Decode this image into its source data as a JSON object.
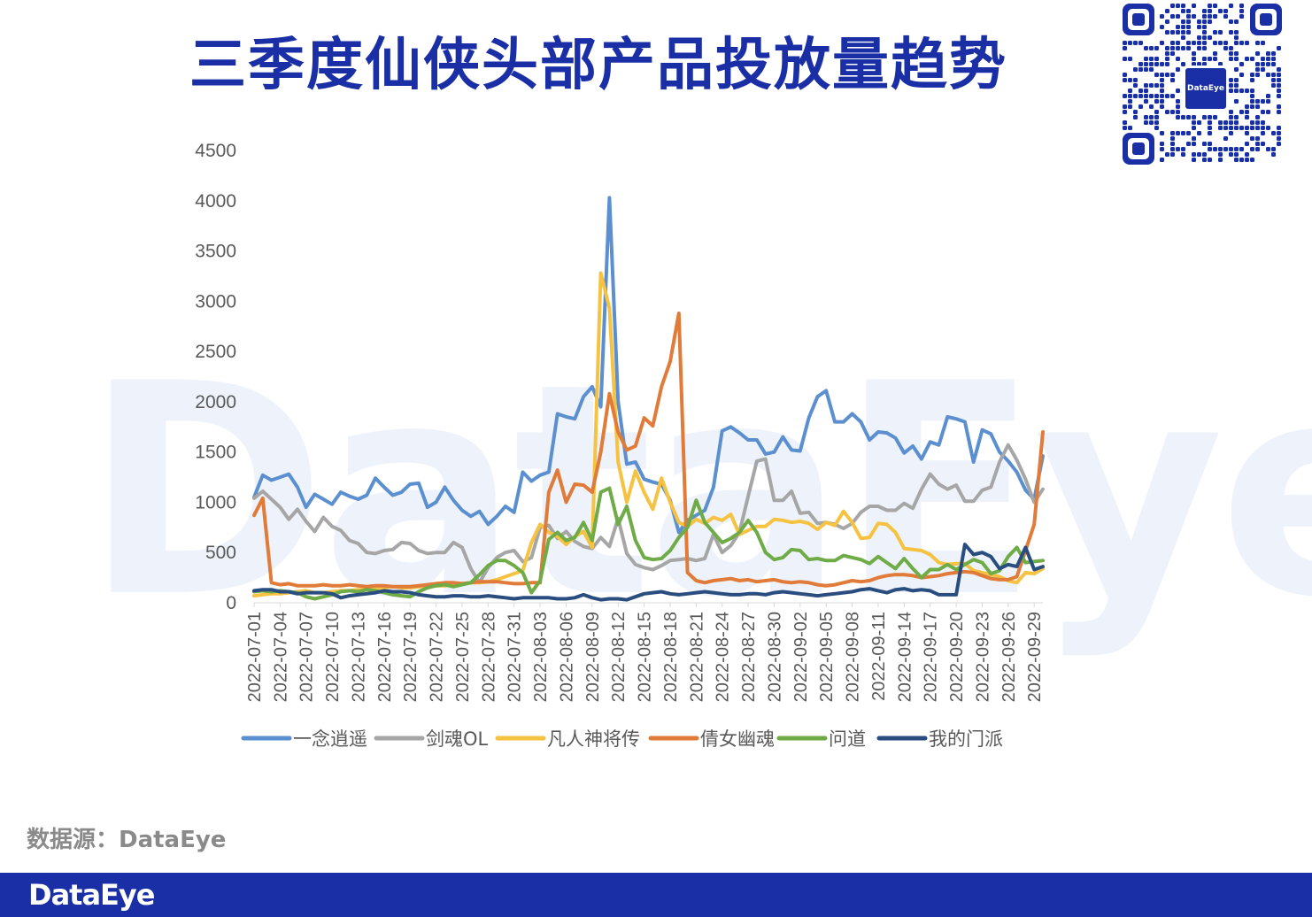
{
  "title": "三季度仙侠头部产品投放量趋势",
  "watermark": "DataEye",
  "source_label": "数据源：DataEye",
  "footer_logo": "DataEye",
  "qr_logo_text": "DataEye",
  "colors": {
    "title": "#1a2ea6",
    "footer": "#1a2ea6",
    "axis_text": "#595959",
    "gridline": "#d9d9d9"
  },
  "chart_data": {
    "type": "line",
    "title": "",
    "xlabel": "",
    "ylabel": "",
    "ylim": [
      0,
      4500
    ],
    "yticks": [
      0,
      500,
      1000,
      1500,
      2000,
      2500,
      3000,
      3500,
      4000,
      4500
    ],
    "grid": false,
    "legend_position": "bottom",
    "x": [
      "2022-07-01",
      "2022-07-02",
      "2022-07-03",
      "2022-07-04",
      "2022-07-05",
      "2022-07-06",
      "2022-07-07",
      "2022-07-08",
      "2022-07-09",
      "2022-07-10",
      "2022-07-11",
      "2022-07-12",
      "2022-07-13",
      "2022-07-14",
      "2022-07-15",
      "2022-07-16",
      "2022-07-17",
      "2022-07-18",
      "2022-07-19",
      "2022-07-20",
      "2022-07-21",
      "2022-07-22",
      "2022-07-23",
      "2022-07-24",
      "2022-07-25",
      "2022-07-26",
      "2022-07-27",
      "2022-07-28",
      "2022-07-29",
      "2022-07-30",
      "2022-07-31",
      "2022-08-01",
      "2022-08-02",
      "2022-08-03",
      "2022-08-04",
      "2022-08-05",
      "2022-08-06",
      "2022-08-07",
      "2022-08-08",
      "2022-08-09",
      "2022-08-10",
      "2022-08-11",
      "2022-08-12",
      "2022-08-13",
      "2022-08-14",
      "2022-08-15",
      "2022-08-16",
      "2022-08-17",
      "2022-08-18",
      "2022-08-19",
      "2022-08-20",
      "2022-08-21",
      "2022-08-22",
      "2022-08-23",
      "2022-08-24",
      "2022-08-25",
      "2022-08-26",
      "2022-08-27",
      "2022-08-28",
      "2022-08-29",
      "2022-08-30",
      "2022-08-31",
      "2022-09-01",
      "2022-09-02",
      "2022-09-03",
      "2022-09-04",
      "2022-09-05",
      "2022-09-06",
      "2022-09-07",
      "2022-09-08",
      "2022-09-09",
      "2022-09-10",
      "2022-09-11",
      "2022-09-12",
      "2022-09-13",
      "2022-09-14",
      "2022-09-15",
      "2022-09-16",
      "2022-09-17",
      "2022-09-18",
      "2022-09-19",
      "2022-09-20",
      "2022-09-21",
      "2022-09-22",
      "2022-09-23",
      "2022-09-24",
      "2022-09-25",
      "2022-09-26",
      "2022-09-27",
      "2022-09-28",
      "2022-09-29",
      "2022-09-30"
    ],
    "xtick_labels": [
      "2022-07-01",
      "2022-07-04",
      "2022-07-07",
      "2022-07-10",
      "2022-07-13",
      "2022-07-16",
      "2022-07-19",
      "2022-07-22",
      "2022-07-25",
      "2022-07-28",
      "2022-07-31",
      "2022-08-03",
      "2022-08-06",
      "2022-08-09",
      "2022-08-12",
      "2022-08-15",
      "2022-08-18",
      "2022-08-21",
      "2022-08-24",
      "2022-08-27",
      "2022-08-30",
      "2022-09-02",
      "2022-09-05",
      "2022-09-08",
      "2022-09-11",
      "2022-09-14",
      "2022-09-17",
      "2022-09-20",
      "2022-09-23",
      "2022-09-26",
      "2022-09-29"
    ],
    "series": [
      {
        "name": "一念逍遥",
        "color": "#5b8fd0",
        "values": [
          1050,
          1270,
          1220,
          1250,
          1280,
          1150,
          950,
          1080,
          1030,
          980,
          1100,
          1060,
          1030,
          1070,
          1240,
          1150,
          1070,
          1100,
          1180,
          1190,
          950,
          1000,
          1150,
          1020,
          920,
          860,
          910,
          780,
          860,
          960,
          900,
          1300,
          1210,
          1270,
          1300,
          1880,
          1850,
          1830,
          2050,
          2150,
          1950,
          4030,
          2000,
          1380,
          1400,
          1230,
          1200,
          1180,
          1020,
          700,
          820,
          870,
          920,
          1150,
          1710,
          1750,
          1690,
          1620,
          1620,
          1480,
          1500,
          1650,
          1520,
          1510,
          1840,
          2050,
          2110,
          1800,
          1800,
          1880,
          1800,
          1620,
          1700,
          1690,
          1640,
          1490,
          1560,
          1430,
          1600,
          1570,
          1850,
          1830,
          1800,
          1400,
          1720,
          1680,
          1500,
          1410,
          1300,
          1120,
          1030,
          1460
        ]
      },
      {
        "name": "剑魂OL",
        "color": "#a6a6a6",
        "values": [
          1040,
          1110,
          1030,
          950,
          830,
          930,
          810,
          710,
          850,
          760,
          720,
          620,
          590,
          500,
          490,
          520,
          530,
          600,
          590,
          520,
          490,
          500,
          500,
          600,
          550,
          340,
          200,
          350,
          450,
          500,
          520,
          410,
          450,
          750,
          770,
          640,
          710,
          610,
          560,
          540,
          650,
          560,
          840,
          490,
          380,
          350,
          330,
          370,
          420,
          430,
          440,
          420,
          440,
          680,
          500,
          570,
          700,
          1060,
          1410,
          1430,
          1020,
          1020,
          1110,
          890,
          900,
          790,
          800,
          780,
          740,
          790,
          900,
          960,
          960,
          920,
          920,
          990,
          940,
          1130,
          1280,
          1180,
          1130,
          1170,
          1010,
          1010,
          1120,
          1150,
          1400,
          1570,
          1420,
          1230,
          1000,
          1130
        ]
      },
      {
        "name": "凡人神将传",
        "color": "#f5c242",
        "values": [
          70,
          80,
          90,
          90,
          100,
          110,
          120,
          100,
          100,
          110,
          120,
          120,
          130,
          130,
          140,
          150,
          160,
          150,
          150,
          160,
          160,
          170,
          170,
          180,
          190,
          200,
          200,
          210,
          230,
          260,
          290,
          320,
          600,
          780,
          700,
          660,
          580,
          660,
          710,
          550,
          3280,
          2930,
          1400,
          1000,
          1310,
          1100,
          930,
          1240,
          1000,
          800,
          760,
          830,
          790,
          850,
          820,
          880,
          680,
          720,
          760,
          760,
          830,
          820,
          800,
          810,
          790,
          730,
          800,
          770,
          910,
          800,
          640,
          650,
          790,
          780,
          700,
          540,
          530,
          520,
          480,
          400,
          380,
          390,
          390,
          320,
          300,
          280,
          260,
          220,
          200,
          300,
          290,
          340
        ]
      },
      {
        "name": "倩女幽魂",
        "color": "#e07b39",
        "values": [
          870,
          1040,
          200,
          180,
          190,
          170,
          170,
          170,
          180,
          170,
          170,
          180,
          170,
          160,
          170,
          170,
          160,
          160,
          160,
          170,
          180,
          190,
          200,
          200,
          190,
          200,
          210,
          210,
          210,
          200,
          190,
          190,
          200,
          200,
          1100,
          1320,
          1000,
          1180,
          1170,
          1100,
          1500,
          2080,
          1700,
          1520,
          1560,
          1840,
          1760,
          2150,
          2400,
          2880,
          300,
          220,
          200,
          220,
          230,
          240,
          220,
          230,
          210,
          220,
          230,
          210,
          200,
          210,
          200,
          180,
          170,
          180,
          200,
          220,
          210,
          220,
          250,
          270,
          280,
          280,
          270,
          250,
          260,
          270,
          290,
          300,
          310,
          300,
          270,
          240,
          230,
          230,
          260,
          520,
          780,
          1700
        ]
      },
      {
        "name": "问道",
        "color": "#6fab46",
        "values": [
          110,
          120,
          110,
          120,
          110,
          100,
          60,
          40,
          60,
          80,
          110,
          120,
          110,
          130,
          120,
          100,
          80,
          70,
          60,
          110,
          150,
          170,
          180,
          160,
          180,
          200,
          280,
          370,
          420,
          420,
          370,
          300,
          100,
          220,
          630,
          700,
          620,
          650,
          800,
          620,
          1100,
          1140,
          780,
          960,
          620,
          450,
          430,
          440,
          520,
          650,
          750,
          1020,
          800,
          700,
          600,
          640,
          700,
          820,
          700,
          500,
          430,
          450,
          530,
          520,
          430,
          440,
          420,
          420,
          470,
          450,
          430,
          390,
          460,
          400,
          340,
          440,
          340,
          250,
          330,
          330,
          380,
          330,
          380,
          430,
          400,
          290,
          320,
          460,
          550,
          400,
          410,
          420
        ]
      },
      {
        "name": "我的门派",
        "color": "#2a4d7f",
        "values": [
          120,
          130,
          130,
          110,
          110,
          90,
          100,
          100,
          100,
          90,
          50,
          70,
          80,
          90,
          100,
          120,
          110,
          110,
          100,
          80,
          70,
          60,
          60,
          70,
          70,
          60,
          60,
          70,
          60,
          50,
          40,
          50,
          50,
          50,
          50,
          40,
          40,
          50,
          80,
          50,
          30,
          40,
          40,
          30,
          60,
          90,
          100,
          110,
          90,
          80,
          90,
          100,
          110,
          100,
          90,
          80,
          80,
          90,
          90,
          80,
          100,
          110,
          100,
          90,
          80,
          70,
          80,
          90,
          100,
          110,
          130,
          140,
          120,
          100,
          130,
          140,
          120,
          130,
          120,
          80,
          80,
          80,
          580,
          480,
          500,
          460,
          340,
          380,
          360,
          550,
          330,
          360
        ]
      }
    ]
  }
}
